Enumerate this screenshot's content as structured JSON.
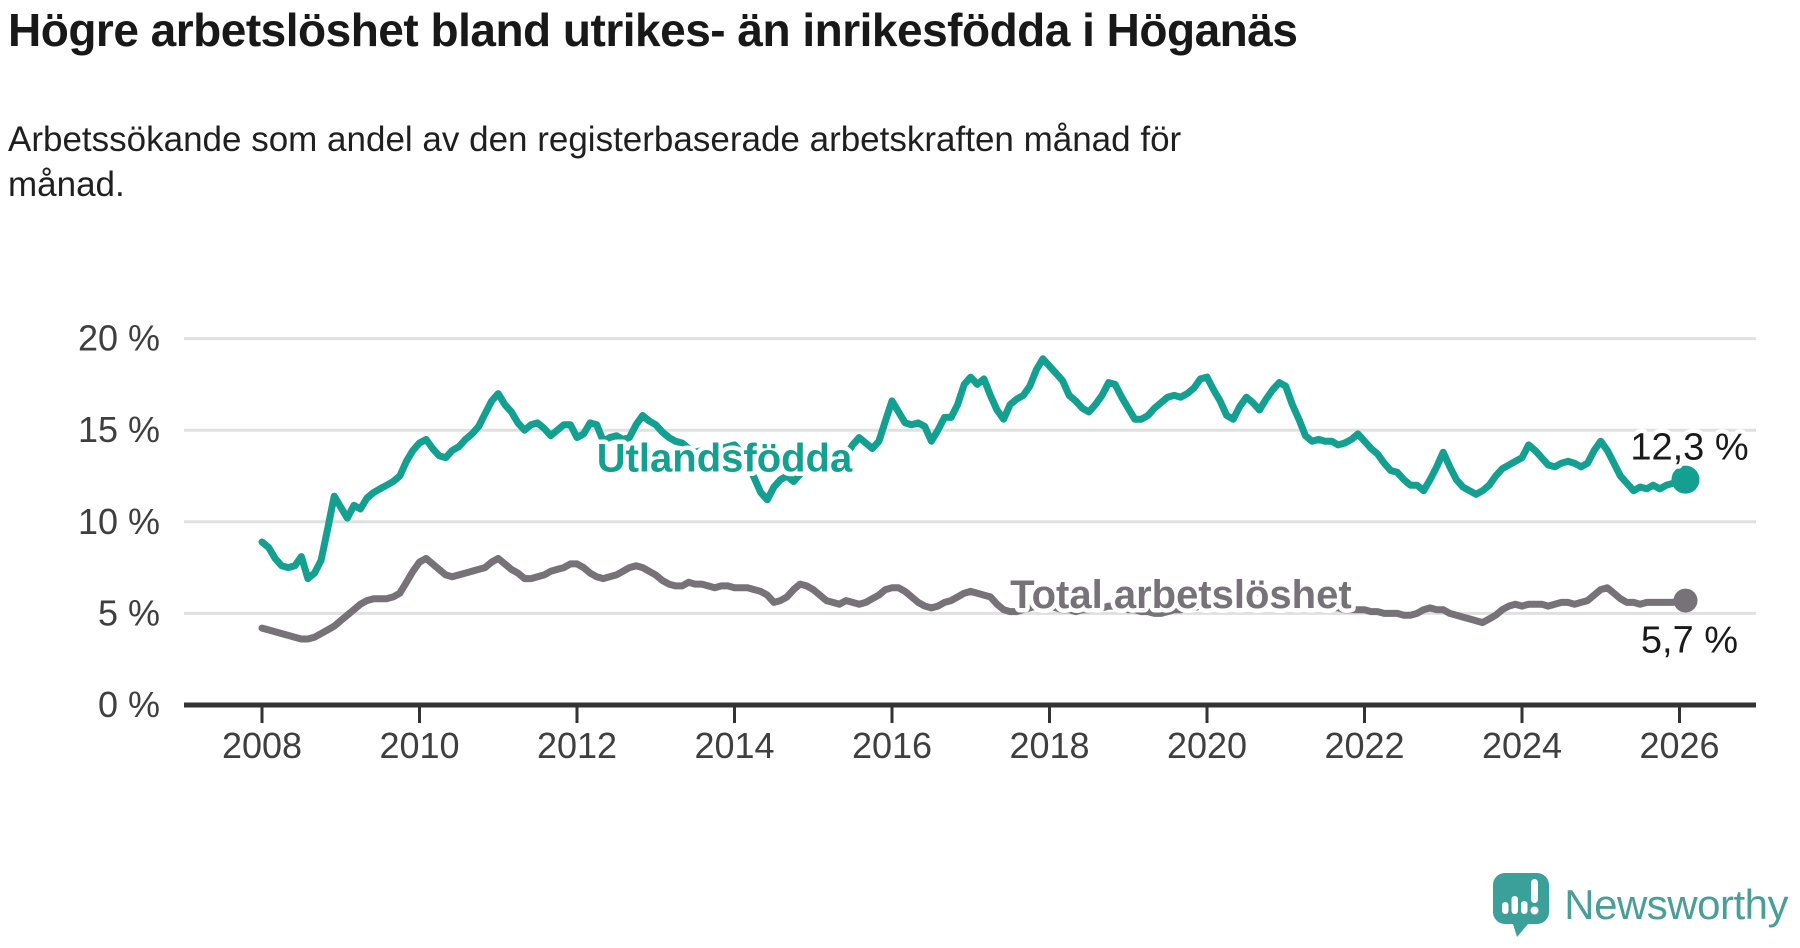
{
  "header": {
    "title": "Högre arbetslöshet bland utrikes- än inrikesfödda i Höganäs",
    "subtitle": "Arbetssökande som andel av den registerbaserade arbetskraften månad för\nmånad."
  },
  "footer": {
    "brand": "Newsworthy"
  },
  "colors": {
    "accent_teal": "#14a091",
    "series_gray": "#767278",
    "grid": "#e0e0e0",
    "axis": "#333333",
    "tick_text": "#3f3f3f",
    "value_text": "#1a1a1a",
    "logo_bubble": "#3ba099",
    "logo_text": "#4a9e98"
  },
  "chart_data": {
    "type": "line",
    "unit": "%",
    "title": "Högre arbetslöshet bland utrikes- än inrikesfödda i Höganäs",
    "subtitle": "Arbetssökande som andel av den registerbaserade arbetskraften månad för månad.",
    "grid": true,
    "legend_position": "inline-labels",
    "xlim": [
      2007.0,
      2027.0
    ],
    "ylim": [
      0,
      20
    ],
    "x_start_year": 2008.0,
    "x_step_years": 0.08333333,
    "y_ticks": [
      {
        "value": 0,
        "label": "0 %"
      },
      {
        "value": 5,
        "label": "5 %"
      },
      {
        "value": 10,
        "label": "10 %"
      },
      {
        "value": 15,
        "label": "15 %"
      },
      {
        "value": 20,
        "label": "20 %"
      }
    ],
    "x_ticks": [
      {
        "value": 2008,
        "label": "2008"
      },
      {
        "value": 2010,
        "label": "2010"
      },
      {
        "value": 2012,
        "label": "2012"
      },
      {
        "value": 2014,
        "label": "2014"
      },
      {
        "value": 2016,
        "label": "2016"
      },
      {
        "value": 2018,
        "label": "2018"
      },
      {
        "value": 2020,
        "label": "2020"
      },
      {
        "value": 2022,
        "label": "2022"
      },
      {
        "value": 2024,
        "label": "2024"
      },
      {
        "value": 2026,
        "label": "2026"
      }
    ],
    "series": [
      {
        "name": "Utlandsfödda",
        "color": "#14a091",
        "end_value": 12.3,
        "end_label": "12,3 %",
        "end_label_side": "above",
        "label_anchor": {
          "year": 2012.25,
          "value": 12.75
        },
        "values": [
          8.9,
          8.6,
          8.0,
          7.6,
          7.5,
          7.6,
          8.1,
          6.9,
          7.2,
          7.9,
          9.6,
          11.4,
          10.8,
          10.2,
          10.9,
          10.7,
          11.3,
          11.6,
          11.8,
          12.0,
          12.2,
          12.5,
          13.3,
          13.9,
          14.3,
          14.5,
          14.0,
          13.6,
          13.5,
          13.9,
          14.1,
          14.5,
          14.8,
          15.2,
          15.9,
          16.6,
          17.0,
          16.4,
          16.0,
          15.4,
          15.0,
          15.3,
          15.4,
          15.1,
          14.7,
          15.0,
          15.3,
          15.3,
          14.6,
          14.8,
          15.4,
          15.3,
          14.4,
          14.6,
          14.7,
          14.5,
          14.6,
          15.3,
          15.8,
          15.5,
          15.3,
          14.9,
          14.6,
          14.4,
          14.3,
          14.0,
          13.8,
          13.9,
          13.8,
          13.9,
          14.0,
          14.1,
          14.2,
          13.8,
          13.2,
          12.4,
          11.6,
          11.2,
          11.9,
          12.3,
          12.5,
          12.2,
          12.6,
          12.9,
          13.1,
          13.0,
          13.2,
          13.4,
          13.3,
          13.6,
          14.2,
          14.6,
          14.3,
          14.0,
          14.4,
          15.5,
          16.6,
          16.0,
          15.4,
          15.3,
          15.4,
          15.2,
          14.4,
          15.0,
          15.7,
          15.7,
          16.4,
          17.5,
          17.9,
          17.5,
          17.8,
          16.9,
          16.1,
          15.6,
          16.4,
          16.7,
          16.9,
          17.4,
          18.3,
          18.9,
          18.5,
          18.1,
          17.7,
          16.9,
          16.6,
          16.2,
          16.0,
          16.4,
          16.9,
          17.6,
          17.5,
          16.8,
          16.2,
          15.6,
          15.6,
          15.8,
          16.2,
          16.5,
          16.8,
          16.9,
          16.8,
          17.0,
          17.3,
          17.8,
          17.9,
          17.2,
          16.6,
          15.8,
          15.6,
          16.3,
          16.8,
          16.5,
          16.1,
          16.7,
          17.2,
          17.6,
          17.4,
          16.4,
          15.6,
          14.7,
          14.4,
          14.5,
          14.4,
          14.4,
          14.2,
          14.3,
          14.5,
          14.8,
          14.4,
          14.0,
          13.7,
          13.2,
          12.8,
          12.7,
          12.3,
          12.0,
          12.0,
          11.7,
          12.3,
          13.0,
          13.8,
          13.0,
          12.3,
          11.9,
          11.7,
          11.5,
          11.7,
          12.0,
          12.5,
          12.9,
          13.1,
          13.3,
          13.5,
          14.2,
          13.9,
          13.5,
          13.1,
          13.0,
          13.2,
          13.3,
          13.2,
          13.0,
          13.2,
          13.9,
          14.4,
          13.9,
          13.2,
          12.5,
          12.1,
          11.7,
          11.9,
          11.8,
          12.0,
          11.8,
          12.0,
          12.1,
          12.3
        ]
      },
      {
        "name": "Total arbetslöshet",
        "color": "#767278",
        "end_value": 5.7,
        "end_label": "5,7 %",
        "end_label_side": "below",
        "label_anchor": {
          "year": 2017.5,
          "value": 5.3
        },
        "values": [
          4.2,
          4.1,
          4.0,
          3.9,
          3.8,
          3.7,
          3.6,
          3.6,
          3.7,
          3.9,
          4.1,
          4.3,
          4.6,
          4.9,
          5.2,
          5.5,
          5.7,
          5.8,
          5.8,
          5.8,
          5.9,
          6.1,
          6.7,
          7.3,
          7.8,
          8.0,
          7.7,
          7.4,
          7.1,
          7.0,
          7.1,
          7.2,
          7.3,
          7.4,
          7.5,
          7.8,
          8.0,
          7.7,
          7.4,
          7.2,
          6.9,
          6.9,
          7.0,
          7.1,
          7.3,
          7.4,
          7.5,
          7.7,
          7.7,
          7.5,
          7.2,
          7.0,
          6.9,
          7.0,
          7.1,
          7.3,
          7.5,
          7.6,
          7.5,
          7.3,
          7.1,
          6.8,
          6.6,
          6.5,
          6.5,
          6.7,
          6.6,
          6.6,
          6.5,
          6.4,
          6.5,
          6.5,
          6.4,
          6.4,
          6.4,
          6.3,
          6.2,
          6.0,
          5.6,
          5.7,
          5.9,
          6.3,
          6.6,
          6.5,
          6.3,
          6.0,
          5.7,
          5.6,
          5.5,
          5.7,
          5.6,
          5.5,
          5.6,
          5.8,
          6.0,
          6.3,
          6.4,
          6.4,
          6.2,
          5.9,
          5.6,
          5.4,
          5.3,
          5.4,
          5.6,
          5.7,
          5.9,
          6.1,
          6.2,
          6.1,
          6.0,
          5.9,
          5.5,
          5.2,
          5.1,
          5.1,
          5.2,
          5.3,
          5.4,
          5.4,
          5.4,
          5.3,
          5.2,
          5.2,
          5.1,
          5.2,
          5.2,
          5.3,
          5.3,
          5.4,
          5.4,
          5.3,
          5.2,
          5.2,
          5.1,
          5.1,
          5.0,
          5.0,
          5.1,
          5.2,
          5.2,
          5.3,
          5.3,
          5.4,
          5.4,
          5.5,
          5.8,
          6.1,
          6.3,
          6.4,
          6.3,
          6.2,
          6.1,
          6.0,
          5.8,
          5.7,
          5.7,
          5.6,
          5.6,
          5.5,
          5.5,
          5.4,
          5.4,
          5.3,
          5.3,
          5.2,
          5.2,
          5.2,
          5.2,
          5.1,
          5.1,
          5.0,
          5.0,
          5.0,
          4.9,
          4.9,
          5.0,
          5.2,
          5.3,
          5.2,
          5.2,
          5.0,
          4.9,
          4.8,
          4.7,
          4.6,
          4.5,
          4.7,
          4.9,
          5.2,
          5.4,
          5.5,
          5.4,
          5.5,
          5.5,
          5.5,
          5.4,
          5.5,
          5.6,
          5.6,
          5.5,
          5.6,
          5.7,
          6.0,
          6.3,
          6.4,
          6.1,
          5.8,
          5.6,
          5.6,
          5.5,
          5.6,
          5.6,
          5.6,
          5.6,
          5.6,
          5.7
        ]
      }
    ]
  }
}
